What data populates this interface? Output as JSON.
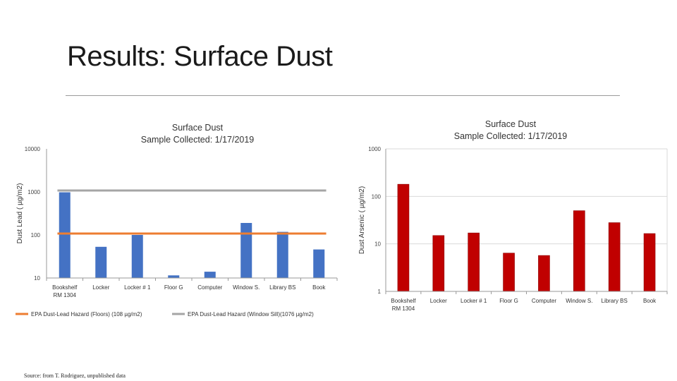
{
  "slide": {
    "title": "Results: Surface Dust",
    "source": "Source: from T. Rodriguez, unpublished data"
  },
  "colors": {
    "lead_bars": "#4472c4",
    "arsenic_bars": "#c00000",
    "floors_line": "#ed7d31",
    "sill_line": "#a5a5a5",
    "axis": "#bfbfbf",
    "grid": "#d9d9d9"
  },
  "chart_data": [
    {
      "type": "bar",
      "title_lines": [
        "Surface Dust",
        "Sample Collected: 1/17/2019"
      ],
      "ylabel": "Dust Lead ( µg/m2)",
      "yscale": "log",
      "ylim": [
        10,
        10000
      ],
      "yticks": [
        "10",
        "100",
        "1000",
        "10000"
      ],
      "grid": false,
      "categories": [
        "Bookshelf RM 1304",
        "Locker",
        "Locker # 1",
        "Floor G",
        "Computer",
        "Window S.",
        "Library BS",
        "Book"
      ],
      "category_lines": [
        [
          "Bookshelf",
          "RM 1304"
        ],
        [
          "Locker"
        ],
        [
          "Locker # 1"
        ],
        [
          "Floor G"
        ],
        [
          "Computer"
        ],
        [
          "Window S."
        ],
        [
          "Library BS"
        ],
        [
          "Book"
        ]
      ],
      "series": [
        {
          "type": "bar",
          "values": [
            980,
            53,
            100,
            11.5,
            14,
            190,
            118,
            46
          ]
        },
        {
          "type": "line",
          "name": "EPA Dust-Lead Hazard (Floors) (108 µg/m2)",
          "value": 108
        },
        {
          "type": "line",
          "name": "EPA Dust-Lead Hazard (Window Sill)(1076 µg/m2)",
          "value": 1076
        }
      ],
      "legend": "bottom"
    },
    {
      "type": "bar",
      "title_lines": [
        "Surface Dust",
        "Sample Collected: 1/17/2019"
      ],
      "ylabel": "Dust Arsenic ( µg/m2)",
      "yscale": "log",
      "ylim": [
        1,
        1000
      ],
      "yticks": [
        "1",
        "10",
        "100",
        "1000"
      ],
      "grid": true,
      "categories": [
        "Bookshelf RM 1304",
        "Locker",
        "Locker # 1",
        "Floor G",
        "Computer",
        "Window S.",
        "Library BS",
        "Book"
      ],
      "category_lines": [
        [
          "Bookshelf",
          "RM 1304"
        ],
        [
          "Locker"
        ],
        [
          "Locker # 1"
        ],
        [
          "Floor G"
        ],
        [
          "Computer"
        ],
        [
          "Window S."
        ],
        [
          "Library BS"
        ],
        [
          "Book"
        ]
      ],
      "series": [
        {
          "type": "bar",
          "values": [
            180,
            15,
            17,
            6.4,
            5.7,
            50,
            28,
            16.5
          ]
        }
      ]
    }
  ]
}
